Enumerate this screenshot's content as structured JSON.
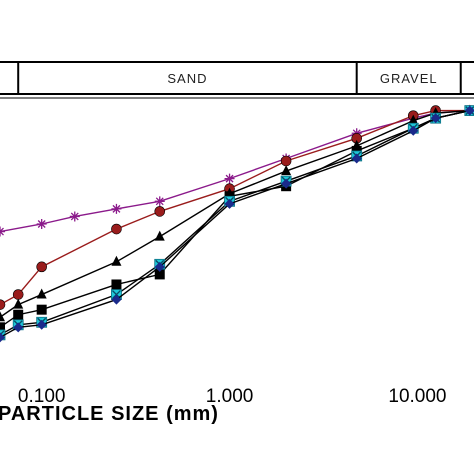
{
  "chart_data": {
    "type": "line",
    "x_scale": "log",
    "xlim": [
      0.06,
      20
    ],
    "ylim": [
      0,
      100
    ],
    "xlabel": "PARTICLE SIZE (mm)",
    "ylabel": "",
    "x_tick_labels": [
      "0.100",
      "1.000",
      "10.000"
    ],
    "x_ticks": [
      0.1,
      1,
      10
    ],
    "grid": false,
    "bands": [
      {
        "label": "",
        "x_range": [
          0.06,
          0.075
        ]
      },
      {
        "label": "SAND",
        "x_range": [
          0.075,
          4.75
        ]
      },
      {
        "label": "GRAVEL",
        "x_range": [
          4.75,
          17
        ]
      }
    ],
    "series": [
      {
        "marker": "star",
        "color": "#8b1a8b",
        "line_color": "#8b1a8b",
        "x": [
          0.06,
          0.1,
          0.15,
          0.25,
          0.425,
          1.0,
          2.0,
          4.75,
          9.5,
          12.5,
          19
        ],
        "y": [
          47,
          50,
          53,
          56,
          59,
          68,
          76,
          86,
          92,
          94,
          95
        ]
      },
      {
        "marker": "circle",
        "color": "#9a1c1c",
        "line_color": "#9a1c1c",
        "x": [
          0.06,
          0.075,
          0.1,
          0.25,
          0.425,
          1.0,
          2.0,
          4.75,
          9.5,
          12.5,
          19
        ],
        "y": [
          18,
          22,
          33,
          48,
          55,
          64,
          75,
          84,
          93,
          95,
          95
        ]
      },
      {
        "marker": "triangle",
        "color": "#000000",
        "line_color": "#000000",
        "x": [
          0.06,
          0.075,
          0.1,
          0.25,
          0.425,
          1.0,
          2.0,
          4.75,
          9.5,
          12.5,
          19
        ],
        "y": [
          13,
          18,
          22,
          35,
          45,
          62,
          71,
          81,
          91,
          94,
          95
        ]
      },
      {
        "marker": "square",
        "color": "#000000",
        "line_color": "#000000",
        "x": [
          0.06,
          0.075,
          0.1,
          0.25,
          0.425,
          1.0,
          2.0,
          4.75,
          9.5,
          12.5,
          19
        ],
        "y": [
          9,
          14,
          16,
          26,
          30,
          61,
          65,
          79,
          88,
          92,
          95
        ]
      },
      {
        "marker": "x-square",
        "color": "#1ec8d8",
        "line_color": "#000000",
        "x": [
          0.06,
          0.075,
          0.1,
          0.25,
          0.425,
          1.0,
          2.0,
          4.75,
          9.5,
          12.5,
          19
        ],
        "y": [
          6,
          10,
          11,
          22,
          34,
          59,
          67,
          77,
          88,
          92,
          95
        ]
      },
      {
        "marker": "diamond",
        "color": "#1a2a8b",
        "line_color": "#000000",
        "x": [
          0.06,
          0.075,
          0.1,
          0.25,
          0.425,
          1.0,
          2.0,
          4.75,
          9.5,
          12.5,
          19
        ],
        "y": [
          5,
          9,
          10,
          20,
          33,
          58,
          66,
          76,
          87,
          92,
          95
        ]
      }
    ]
  }
}
